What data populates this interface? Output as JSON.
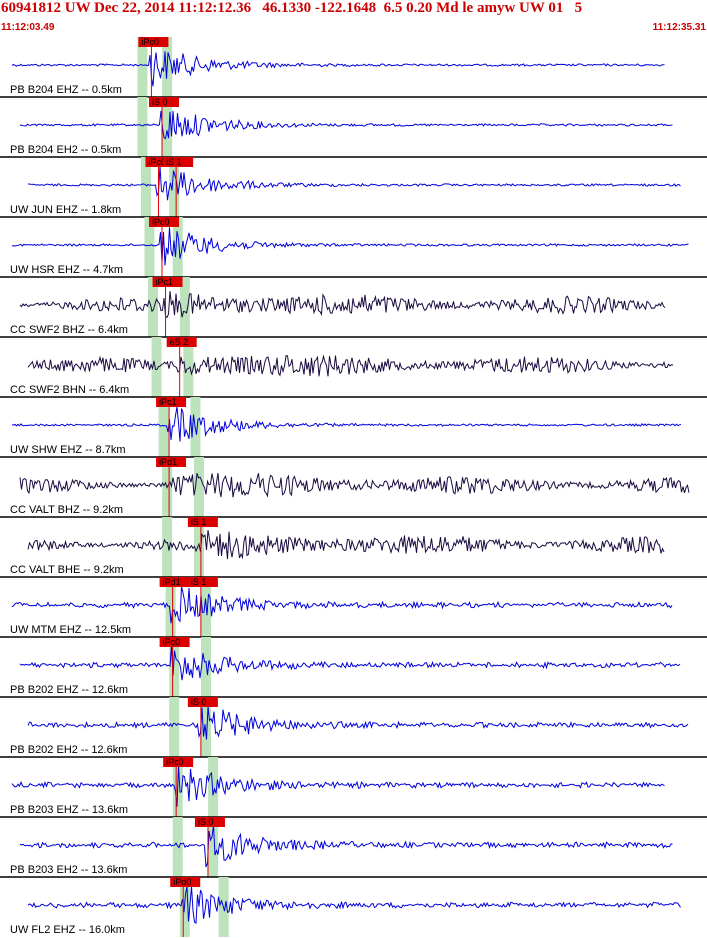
{
  "header": {
    "title": "60941812 UW Dec 22, 2014 11:12:12.36   46.1330 -122.1648  6.5 0.20 Md le amyw UW 01   5",
    "start_time": "11:12:03.49",
    "end_time": "11:12:35.31"
  },
  "colors": {
    "title": "#cc0000",
    "trace_blue": "#0000dd",
    "trace_dark": "#1a0a40",
    "pick_red": "#dd0000",
    "shade_green": "#bde3bd",
    "separator": "#000000"
  },
  "panels": [
    {
      "label": "PB B204 EHZ -- 0.5km",
      "trace": "blue",
      "picks": [
        {
          "text": "iPc0",
          "t": 0.2
        }
      ],
      "shades": [
        0.2,
        0.235
      ]
    },
    {
      "label": "PB B204 EH2 -- 0.5km",
      "trace": "blue",
      "picks": [
        {
          "text": "iS 0",
          "t": 0.215
        }
      ],
      "shades": [
        0.2,
        0.235
      ]
    },
    {
      "label": "UW JUN EHZ -- 1.8km",
      "trace": "blue",
      "picks": [
        {
          "text": "iPc0",
          "t": 0.21
        },
        {
          "text": "iS 1",
          "t": 0.235
        }
      ],
      "shades": [
        0.205,
        0.245
      ]
    },
    {
      "label": "UW HSR EHZ -- 4.7km",
      "trace": "blue",
      "picks": [
        {
          "text": "iPc0",
          "t": 0.215
        }
      ],
      "shades": [
        0.21,
        0.25
      ]
    },
    {
      "label": "CC SWF2 BHZ -- 6.4km",
      "trace": "dark",
      "picks": [
        {
          "text": "iPc1",
          "t": 0.22
        }
      ],
      "shades": [
        0.215,
        0.26
      ]
    },
    {
      "label": "CC SWF2 BHN -- 6.4km",
      "trace": "dark",
      "picks": [
        {
          "text": "eS 2",
          "t": 0.24
        }
      ],
      "shades": [
        0.22,
        0.265
      ]
    },
    {
      "label": "UW SHW EHZ -- 8.7km",
      "trace": "blue",
      "picks": [
        {
          "text": "iPc1",
          "t": 0.225
        }
      ],
      "shades": [
        0.23,
        0.275
      ]
    },
    {
      "label": "CC VALT BHZ -- 9.2km",
      "trace": "dark",
      "picks": [
        {
          "text": "iPd1",
          "t": 0.225
        }
      ],
      "shades": [
        0.235,
        0.28
      ]
    },
    {
      "label": "CC VALT BHE -- 9.2km",
      "trace": "dark",
      "picks": [
        {
          "text": "iS 1",
          "t": 0.27
        }
      ],
      "shades": [
        0.235,
        0.28
      ]
    },
    {
      "label": "UW MTM EHZ -- 12.5km",
      "trace": "blue",
      "picks": [
        {
          "text": "iPd1",
          "t": 0.23
        },
        {
          "text": "iS 1",
          "t": 0.27
        }
      ],
      "shades": [
        0.24,
        0.29
      ]
    },
    {
      "label": "PB B202 EHZ -- 12.6km",
      "trace": "blue",
      "picks": [
        {
          "text": "iPc0",
          "t": 0.23
        }
      ],
      "shades": [
        0.245,
        0.29
      ]
    },
    {
      "label": "PB B202 EH2 -- 12.6km",
      "trace": "blue",
      "picks": [
        {
          "text": "iS 0",
          "t": 0.27
        }
      ],
      "shades": [
        0.245,
        0.29
      ]
    },
    {
      "label": "PB B203 EHZ -- 13.6km",
      "trace": "blue",
      "picks": [
        {
          "text": "iPc0",
          "t": 0.235
        }
      ],
      "shades": [
        0.25,
        0.3
      ]
    },
    {
      "label": "PB B203 EH2 -- 13.6km",
      "trace": "blue",
      "picks": [
        {
          "text": "iS 0",
          "t": 0.28
        }
      ],
      "shades": [
        0.25,
        0.3
      ]
    },
    {
      "label": "UW FL2 EHZ -- 16.0km",
      "trace": "blue",
      "picks": [
        {
          "text": "iPd0",
          "t": 0.245
        }
      ],
      "shades": [
        0.26,
        0.315
      ]
    }
  ]
}
